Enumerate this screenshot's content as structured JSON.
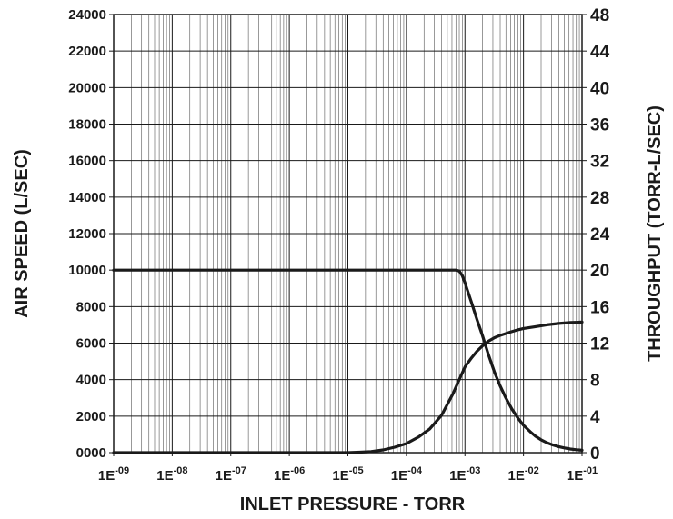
{
  "chart_data": {
    "type": "line",
    "xlabel": "INLET PRESSURE - TORR",
    "ylabel": "AIR SPEED (L/SEC)",
    "y2label": "THROUGHPUT (TORR-L/SEC)",
    "x_scale": "log",
    "xlim": [
      1e-09,
      0.1
    ],
    "ylim": [
      0,
      24000
    ],
    "y2lim": [
      0,
      48
    ],
    "grid": true,
    "x_tick_labels": [
      {
        "base": "1E",
        "exp": "-09"
      },
      {
        "base": "1E",
        "exp": "-08"
      },
      {
        "base": "1E",
        "exp": "-07"
      },
      {
        "base": "1E",
        "exp": "-06"
      },
      {
        "base": "1E",
        "exp": "-05"
      },
      {
        "base": "1E",
        "exp": "-04"
      },
      {
        "base": "1E",
        "exp": "-03"
      },
      {
        "base": "1E",
        "exp": "-02"
      },
      {
        "base": "1E",
        "exp": "-01"
      }
    ],
    "y_tick_labels": [
      "0000",
      "2000",
      "4000",
      "6000",
      "8000",
      "10000",
      "12000",
      "14000",
      "16000",
      "18000",
      "20000",
      "22000",
      "24000"
    ],
    "y2_tick_labels": [
      "0",
      "4",
      "8",
      "12",
      "16",
      "20",
      "24",
      "28",
      "32",
      "36",
      "40",
      "44",
      "48"
    ],
    "series": [
      {
        "axis": "left",
        "x": [
          1e-09,
          1e-08,
          1e-07,
          1e-06,
          1e-05,
          0.0001,
          0.0005,
          0.0007,
          0.0008,
          0.0009,
          0.001,
          0.0013,
          0.0016,
          0.002,
          0.0025,
          0.0032,
          0.004,
          0.005,
          0.0063,
          0.008,
          0.01,
          0.013,
          0.016,
          0.02,
          0.025,
          0.032,
          0.04,
          0.05,
          0.063,
          0.08,
          0.1
        ],
        "values": [
          10000,
          10000,
          10000,
          10000,
          10000,
          10000,
          10000,
          10000,
          9950,
          9700,
          9300,
          8200,
          7300,
          6400,
          5400,
          4400,
          3650,
          3000,
          2400,
          1900,
          1500,
          1150,
          900,
          700,
          550,
          420,
          330,
          260,
          200,
          160,
          130
        ]
      },
      {
        "axis": "right",
        "x": [
          1e-09,
          1e-06,
          1e-05,
          1.6e-05,
          2.5e-05,
          4e-05,
          6.3e-05,
          0.0001,
          0.00016,
          0.00025,
          0.0004,
          0.00063,
          0.0008,
          0.001,
          0.0013,
          0.0016,
          0.002,
          0.0025,
          0.0032,
          0.004,
          0.005,
          0.0063,
          0.008,
          0.01,
          0.016,
          0.025,
          0.04,
          0.063,
          0.1
        ],
        "values": [
          0,
          0,
          0,
          0.05,
          0.12,
          0.3,
          0.6,
          1.0,
          1.7,
          2.6,
          4.1,
          6.5,
          8.0,
          9.4,
          10.4,
          11.1,
          11.7,
          12.2,
          12.6,
          12.85,
          13.05,
          13.25,
          13.45,
          13.6,
          13.8,
          14.0,
          14.15,
          14.25,
          14.3
        ]
      }
    ]
  }
}
